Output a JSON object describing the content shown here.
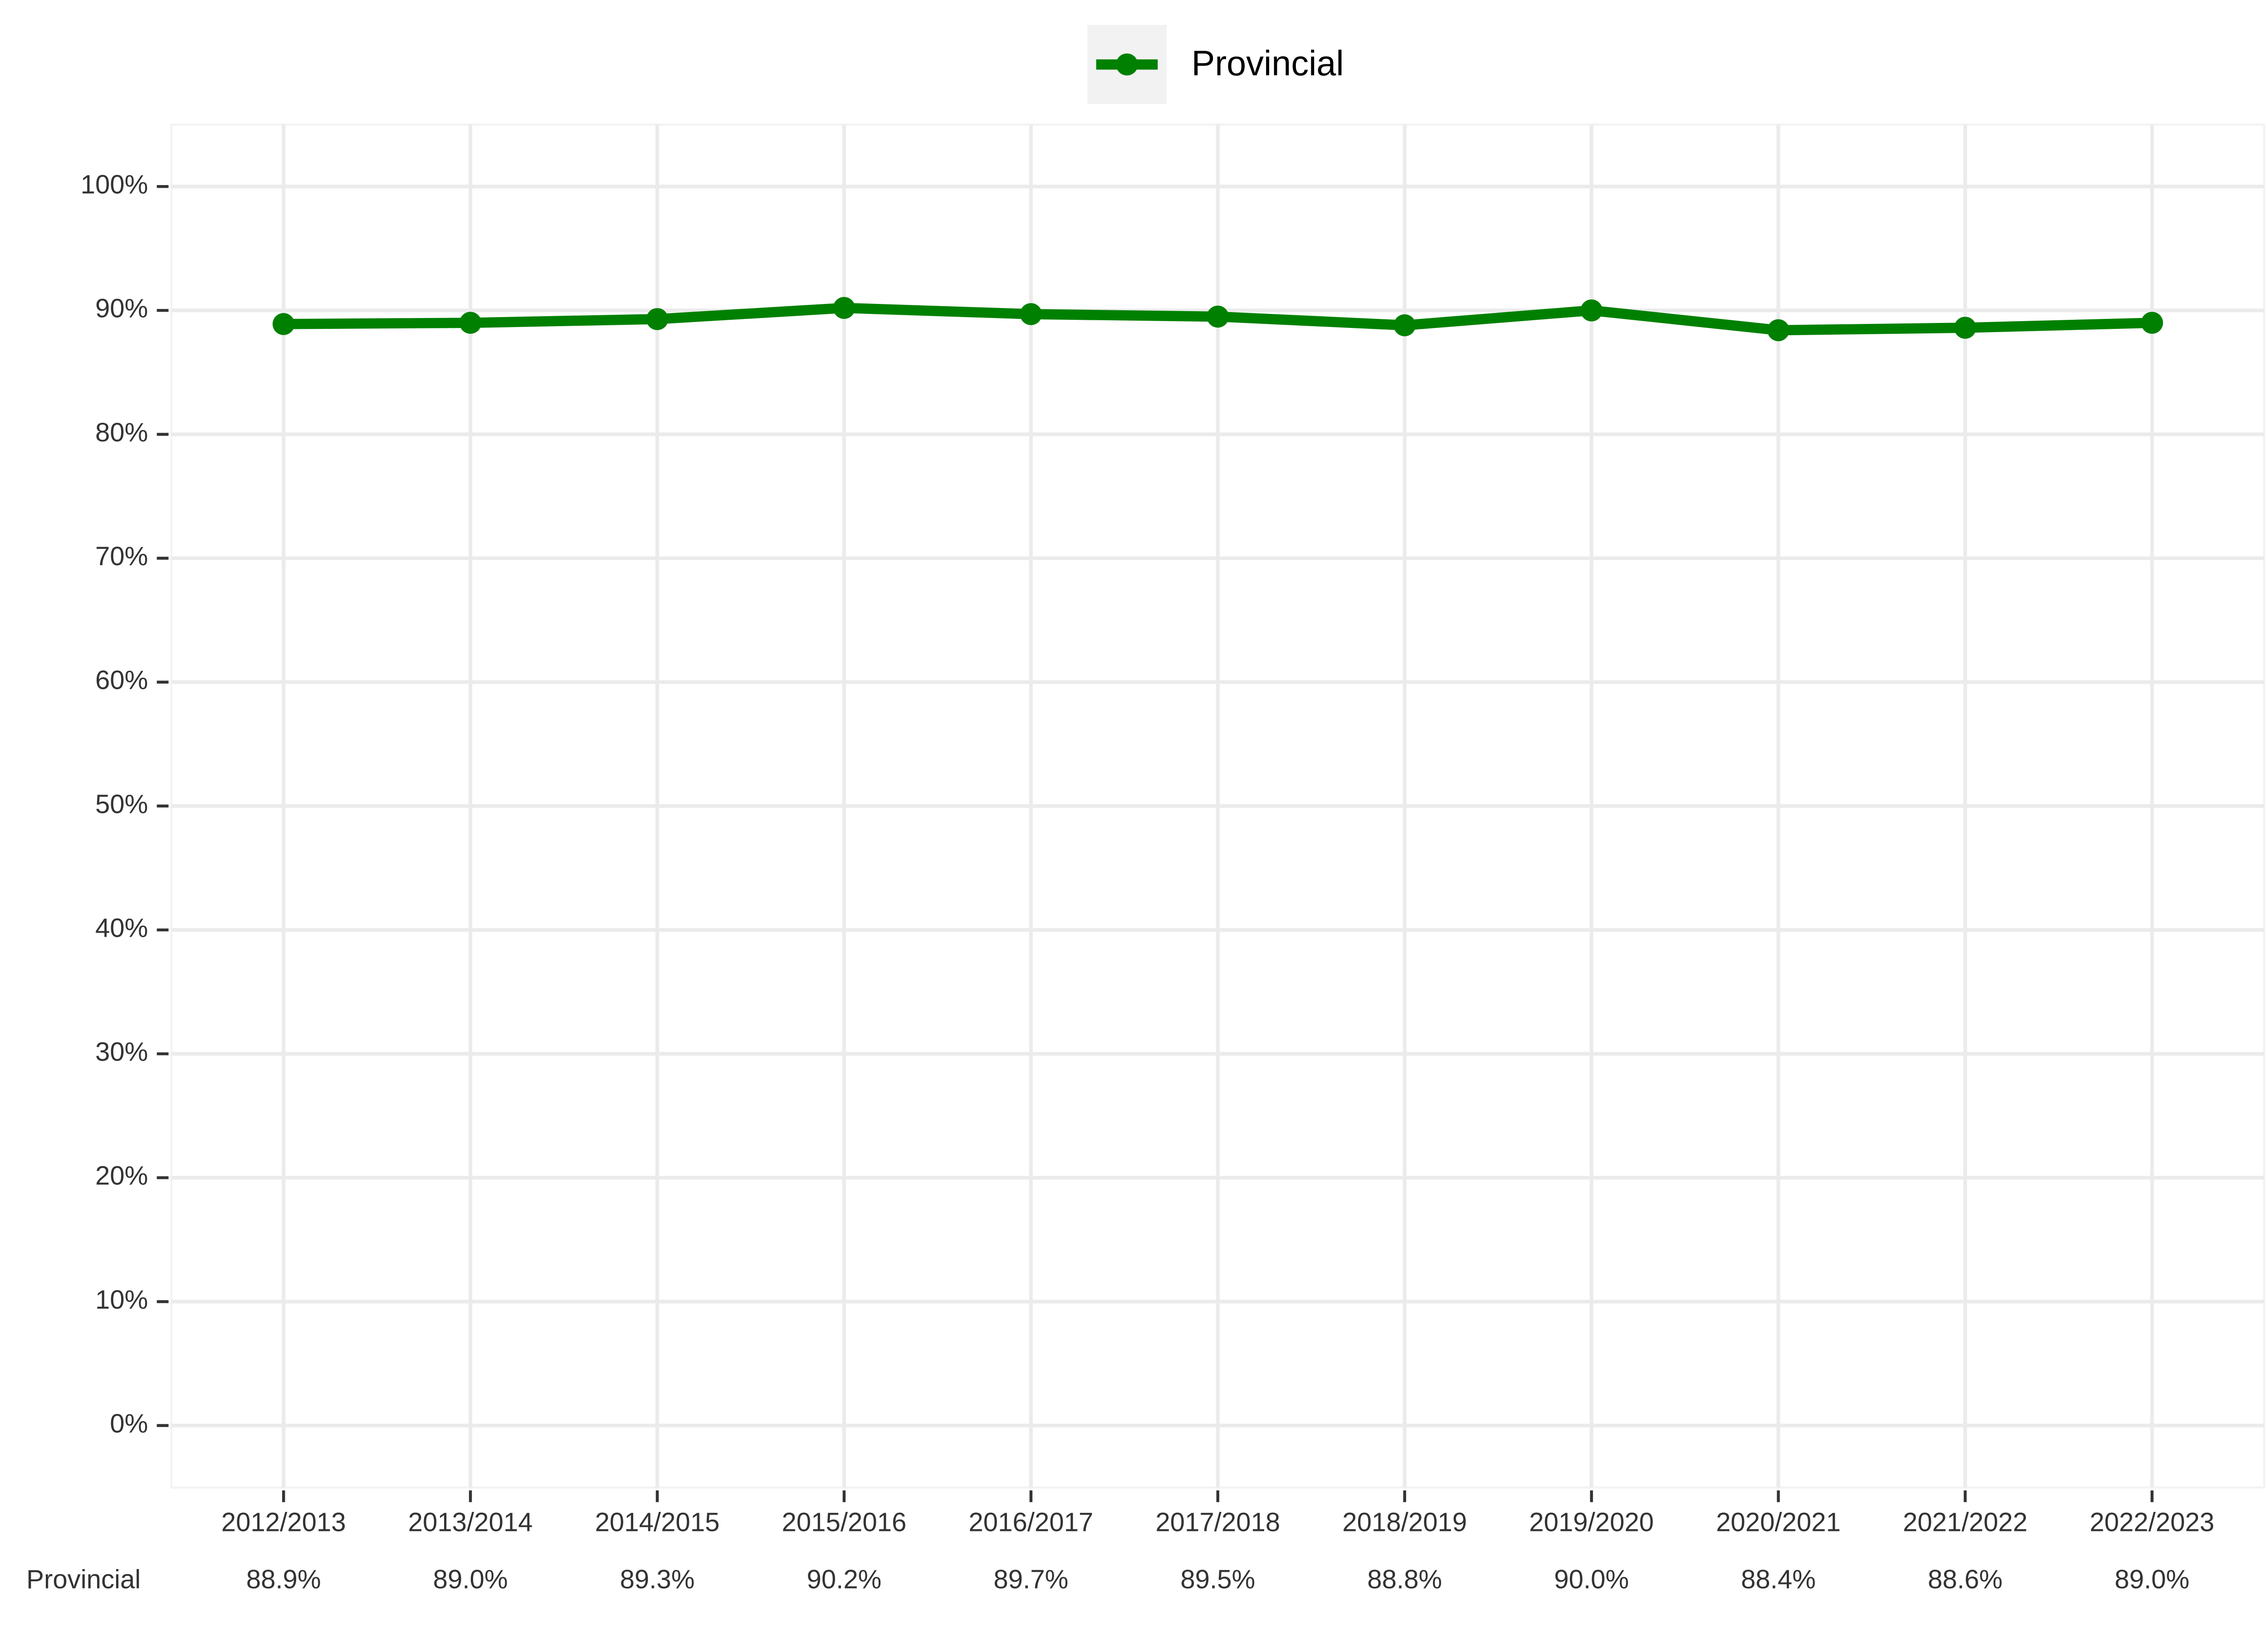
{
  "chart_data": {
    "type": "line",
    "categories": [
      "2012/2013",
      "2013/2014",
      "2014/2015",
      "2015/2016",
      "2016/2017",
      "2017/2018",
      "2018/2019",
      "2019/2020",
      "2020/2021",
      "2021/2022",
      "2022/2023"
    ],
    "series": [
      {
        "name": "Provincial",
        "color": "#008000",
        "values": [
          88.9,
          89.0,
          89.3,
          90.2,
          89.7,
          89.5,
          88.8,
          90.0,
          88.4,
          88.6,
          89.0
        ],
        "value_labels": [
          "88.9%",
          "89.0%",
          "89.3%",
          "90.2%",
          "89.7%",
          "89.5%",
          "88.8%",
          "90.0%",
          "88.4%",
          "88.6%",
          "89.0%"
        ]
      }
    ],
    "ylim": [
      -5,
      105
    ],
    "yticks": [
      {
        "value": 0,
        "label": "0%"
      },
      {
        "value": 10,
        "label": "10%"
      },
      {
        "value": 20,
        "label": "20%"
      },
      {
        "value": 30,
        "label": "30%"
      },
      {
        "value": 40,
        "label": "40%"
      },
      {
        "value": 50,
        "label": "50%"
      },
      {
        "value": 60,
        "label": "60%"
      },
      {
        "value": 70,
        "label": "70%"
      },
      {
        "value": 80,
        "label": "80%"
      },
      {
        "value": 90,
        "label": "90%"
      },
      {
        "value": 100,
        "label": "100%"
      }
    ],
    "grid": true,
    "legend": "top"
  }
}
